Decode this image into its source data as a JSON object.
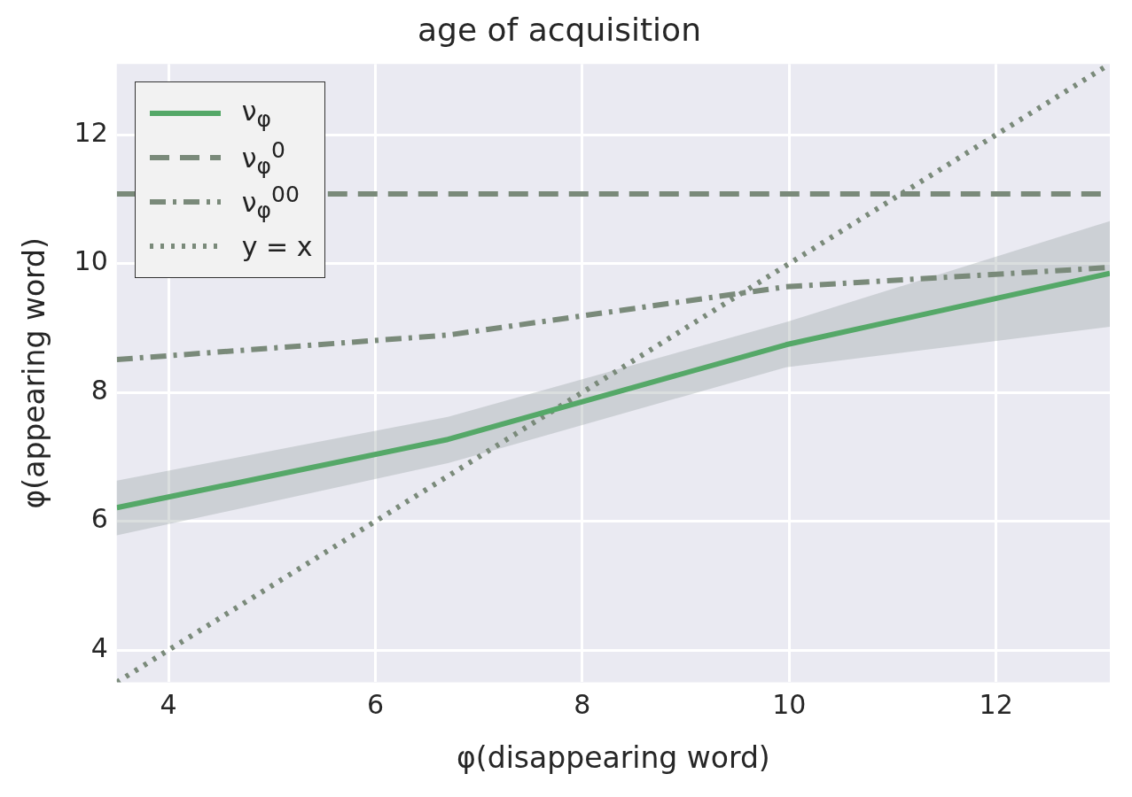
{
  "chart_data": {
    "type": "line",
    "title": "age of acquisition",
    "xlabel": "φ(disappearing word)",
    "ylabel": "φ(appearing word)",
    "xlim": [
      3.5,
      13.1
    ],
    "ylim": [
      3.5,
      13.1
    ],
    "xticks": [
      4,
      6,
      8,
      10,
      12
    ],
    "yticks": [
      4,
      6,
      8,
      10,
      12
    ],
    "grid": true,
    "legend": "top left",
    "marker": "none",
    "series": [
      {
        "name": "ν$_{φ}$",
        "color": "#55a868",
        "line_style": "solid",
        "x": [
          3.5,
          6.7,
          9.97,
          13.1
        ],
        "values": [
          6.21,
          7.27,
          8.74,
          9.85
        ],
        "lower": [
          5.78,
          6.9,
          8.39,
          9.02
        ],
        "upper": [
          6.63,
          7.62,
          9.09,
          10.66
        ]
      },
      {
        "name": "ν$_{φ}$$^{0}$",
        "color": "#7a8a7a",
        "line_style": "dashed",
        "x": [
          3.5,
          13.1
        ],
        "values": [
          11.08,
          11.08
        ]
      },
      {
        "name": "ν$_{φ}$$^{00}$",
        "color": "#7a8a7a",
        "line_style": "dashdot",
        "x": [
          3.5,
          6.7,
          9.97,
          13.1
        ],
        "values": [
          8.51,
          8.89,
          9.64,
          9.94
        ]
      },
      {
        "name": "y = x",
        "color": "#7a8a7a",
        "line_style": "dotted",
        "x": [
          3.5,
          13.1
        ],
        "values": [
          3.5,
          13.1
        ]
      }
    ]
  }
}
